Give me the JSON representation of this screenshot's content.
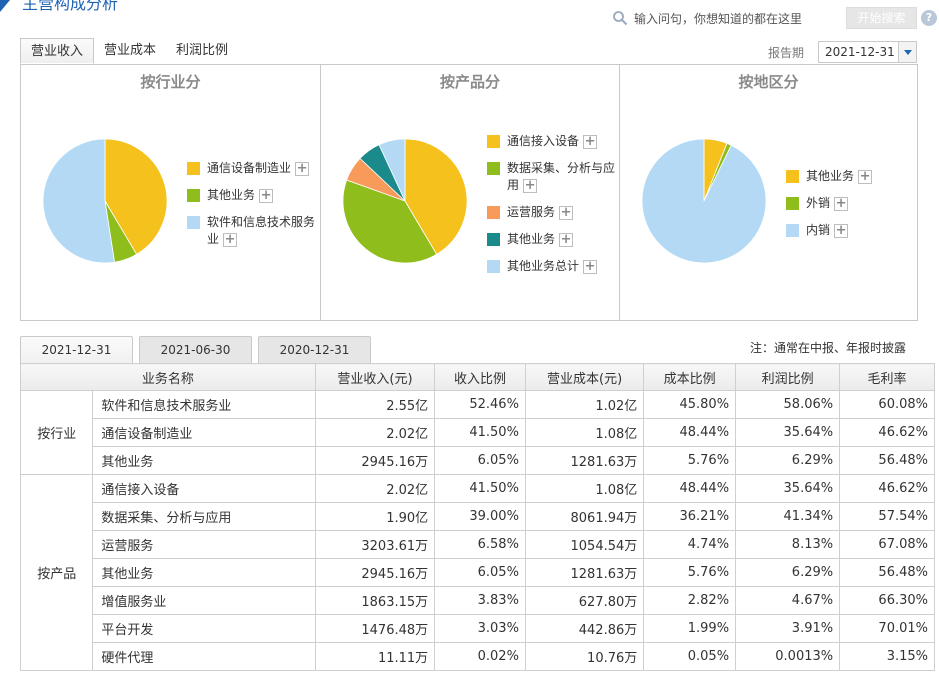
{
  "header": {
    "title": "主营构成分析",
    "search_placeholder": "输入问句，你想知道的都在这里",
    "search_button": "开始搜索",
    "help": "?"
  },
  "tabs": [
    {
      "label": "营业收入",
      "active": true
    },
    {
      "label": "营业成本",
      "active": false
    },
    {
      "label": "利润比例",
      "active": false
    }
  ],
  "period": {
    "label": "报告期",
    "value": "2021-12-31"
  },
  "colors": {
    "yellow": "#f5c11c",
    "green": "#8fbd1b",
    "orange": "#f79a5a",
    "teal": "#1a8a8a",
    "light_blue": "#b3d9f5",
    "accent": "#1f63b3"
  },
  "charts": [
    {
      "title": "按行业分",
      "slices": [
        {
          "label": "通信设备制造业",
          "value": 41.5,
          "color": "#f5c11c"
        },
        {
          "label": "其他业务",
          "value": 6.05,
          "color": "#8fbd1b"
        },
        {
          "label": "软件和信息技术服务业",
          "value": 52.46,
          "color": "#b3d9f5"
        }
      ]
    },
    {
      "title": "按产品分",
      "slices": [
        {
          "label": "通信接入设备",
          "value": 41.5,
          "color": "#f5c11c"
        },
        {
          "label": "数据采集、分析与应用",
          "value": 39.0,
          "color": "#8fbd1b"
        },
        {
          "label": "运营服务",
          "value": 6.58,
          "color": "#f79a5a"
        },
        {
          "label": "其他业务",
          "value": 6.05,
          "color": "#1a8a8a"
        },
        {
          "label": "其他业务总计",
          "value": 6.88,
          "color": "#b3d9f5"
        }
      ]
    },
    {
      "title": "按地区分",
      "slices": [
        {
          "label": "其他业务",
          "value": 6.05,
          "color": "#f5c11c"
        },
        {
          "label": "外销",
          "value": 1.2,
          "color": "#8fbd1b"
        },
        {
          "label": "内销",
          "value": 92.75,
          "color": "#b3d9f5"
        }
      ]
    }
  ],
  "date_tabs": [
    {
      "label": "2021-12-31",
      "active": true
    },
    {
      "label": "2021-06-30",
      "active": false
    },
    {
      "label": "2020-12-31",
      "active": false
    }
  ],
  "note": "注：通常在中报、年报时披露",
  "table": {
    "headers": [
      "业务名称",
      "营业收入(元)",
      "收入比例",
      "营业成本(元)",
      "成本比例",
      "利润比例",
      "毛利率"
    ],
    "groups": [
      {
        "name": "按行业",
        "rows": [
          [
            "软件和信息技术服务业",
            "2.55亿",
            "52.46%",
            "1.02亿",
            "45.80%",
            "58.06%",
            "60.08%"
          ],
          [
            "通信设备制造业",
            "2.02亿",
            "41.50%",
            "1.08亿",
            "48.44%",
            "35.64%",
            "46.62%"
          ],
          [
            "其他业务",
            "2945.16万",
            "6.05%",
            "1281.63万",
            "5.76%",
            "6.29%",
            "56.48%"
          ]
        ]
      },
      {
        "name": "按产品",
        "rows": [
          [
            "通信接入设备",
            "2.02亿",
            "41.50%",
            "1.08亿",
            "48.44%",
            "35.64%",
            "46.62%"
          ],
          [
            "数据采集、分析与应用",
            "1.90亿",
            "39.00%",
            "8061.94万",
            "36.21%",
            "41.34%",
            "57.54%"
          ],
          [
            "运营服务",
            "3203.61万",
            "6.58%",
            "1054.54万",
            "4.74%",
            "8.13%",
            "67.08%"
          ],
          [
            "其他业务",
            "2945.16万",
            "6.05%",
            "1281.63万",
            "5.76%",
            "6.29%",
            "56.48%"
          ],
          [
            "增值服务业",
            "1863.15万",
            "3.83%",
            "627.80万",
            "2.82%",
            "4.67%",
            "66.30%"
          ],
          [
            "平台开发",
            "1476.48万",
            "3.03%",
            "442.86万",
            "1.99%",
            "3.91%",
            "70.01%"
          ],
          [
            "硬件代理",
            "11.11万",
            "0.02%",
            "10.76万",
            "0.05%",
            "0.0013%",
            "3.15%"
          ]
        ]
      }
    ]
  }
}
